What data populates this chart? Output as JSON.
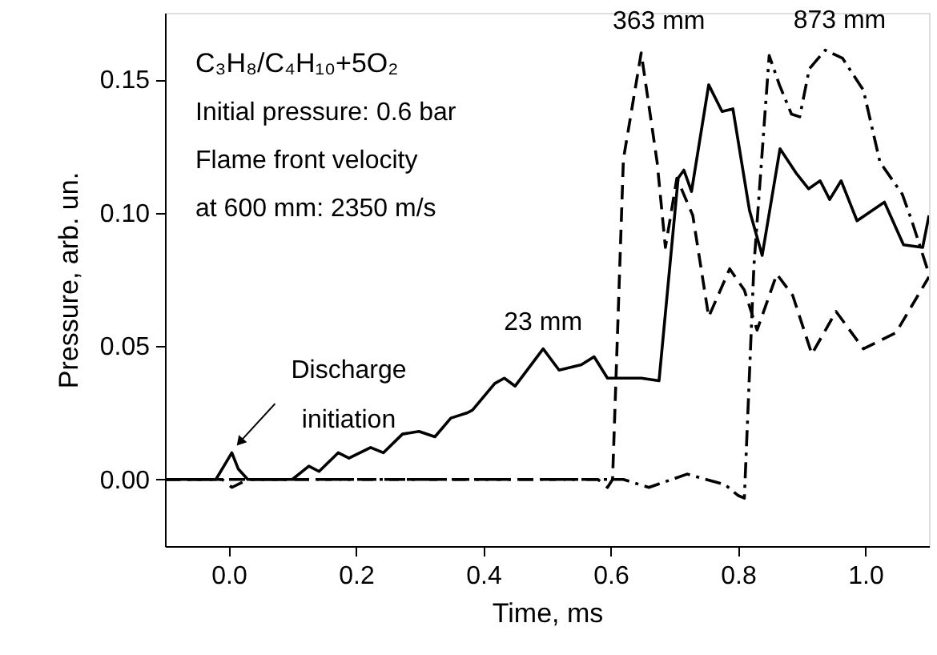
{
  "chart_data": {
    "type": "line",
    "xlabel": "Time, ms",
    "ylabel": "Pressure, arb. un.",
    "xlim": [
      -0.1,
      1.1
    ],
    "ylim": [
      -0.025,
      0.175
    ],
    "xticks": [
      {
        "value": 0,
        "label": "0.0"
      },
      0.2,
      0.4,
      0.6,
      0.8,
      {
        "value": 1,
        "label": "1.0"
      }
    ],
    "yticks": [
      {
        "value": 0,
        "label": "0.00"
      },
      0.05,
      {
        "value": 0.1,
        "label": "0.10"
      },
      0.15
    ],
    "grid": false,
    "marker": "none",
    "series": [
      {
        "color": "#000000",
        "line_style": "solid",
        "x": [
          -0.1,
          -0.02,
          0.0,
          0.005,
          0.015,
          0.03,
          0.1,
          0.126,
          0.142,
          0.172,
          0.189,
          0.223,
          0.243,
          0.273,
          0.299,
          0.324,
          0.349,
          0.375,
          0.383,
          0.418,
          0.433,
          0.45,
          0.494,
          0.519,
          0.554,
          0.574,
          0.595,
          0.648,
          0.676,
          0.706,
          0.715,
          0.727,
          0.754,
          0.775,
          0.792,
          0.818,
          0.838,
          0.866,
          0.891,
          0.911,
          0.929,
          0.944,
          0.962,
          0.987,
          1.03,
          1.06,
          1.09,
          1.1
        ],
        "values": [
          0,
          0,
          0.008,
          0.01,
          0.004,
          0,
          0,
          0.005,
          0.003,
          0.01,
          0.008,
          0.012,
          0.01,
          0.017,
          0.018,
          0.016,
          0.023,
          0.025,
          0.026,
          0.036,
          0.038,
          0.035,
          0.049,
          0.041,
          0.043,
          0.046,
          0.038,
          0.038,
          0.037,
          0.113,
          0.116,
          0.108,
          0.148,
          0.138,
          0.139,
          0.101,
          0.084,
          0.124,
          0.115,
          0.109,
          0.112,
          0.105,
          0.112,
          0.097,
          0.104,
          0.088,
          0.087,
          0.099
        ]
      },
      {
        "color": "#000000",
        "line_style": "dashed",
        "x": [
          -0.1,
          -0.01,
          0.005,
          0.03,
          0.3,
          0.58,
          0.595,
          0.603,
          0.62,
          0.648,
          0.673,
          0.686,
          0.704,
          0.729,
          0.754,
          0.787,
          0.81,
          0.83,
          0.861,
          0.886,
          0.916,
          0.954,
          0.997,
          1.048,
          1.1
        ],
        "values": [
          0,
          0,
          -0.003,
          0,
          0,
          0,
          -0.003,
          0.0,
          0.12,
          0.16,
          0.119,
          0.087,
          0.113,
          0.099,
          0.061,
          0.079,
          0.071,
          0.056,
          0.077,
          0.069,
          0.047,
          0.063,
          0.049,
          0.055,
          0.076
        ]
      },
      {
        "color": "#000000",
        "line_style": "dashdot",
        "x": [
          -0.1,
          0.6,
          0.62,
          0.66,
          0.72,
          0.78,
          0.8,
          0.81,
          0.825,
          0.849,
          0.865,
          0.884,
          0.897,
          0.912,
          0.937,
          0.964,
          0.997,
          1.023,
          1.058,
          1.073,
          1.1
        ],
        "values": [
          0,
          0,
          0,
          -0.003,
          0.002,
          -0.002,
          -0.006,
          -0.007,
          0.08,
          0.159,
          0.148,
          0.137,
          0.136,
          0.154,
          0.161,
          0.158,
          0.146,
          0.119,
          0.107,
          0.097,
          0.077
        ]
      }
    ],
    "annotations": [
      "C₃H₈/C₄H₁₀+5O₂",
      "Initial pressure: 0.6 bar",
      "Flame front velocity",
      "at 600 mm: 2350 m/s",
      {
        "text": "Discharge\ninitiation",
        "x": 0.005,
        "y": 0.011
      },
      {
        "text": "23 mm",
        "x": 0.494,
        "y": 0.049
      },
      {
        "text": "363 mm",
        "x": 0.648,
        "y": 0.16
      },
      {
        "text": "873 mm",
        "x": 0.937,
        "y": 0.161
      }
    ]
  }
}
